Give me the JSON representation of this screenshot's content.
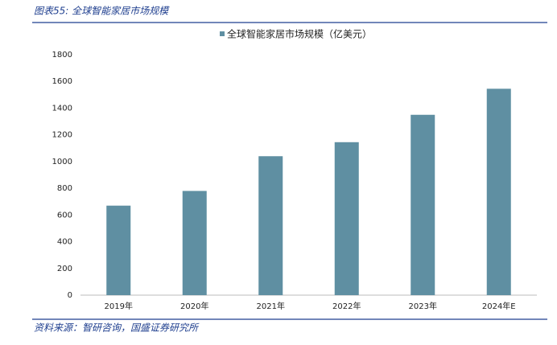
{
  "chart_data": {
    "type": "bar",
    "title": "图表55:  全球智能家居市场规模",
    "source": "资料来源：智研咨询，国盛证券研究所",
    "categories": [
      "2019年",
      "2020年",
      "2021年",
      "2022年",
      "2023年",
      "2024年E"
    ],
    "series": [
      {
        "name": "全球智能家居市场规模（亿美元）",
        "color": "#5f8fa2",
        "values": [
          670,
          780,
          1040,
          1145,
          1350,
          1545
        ]
      }
    ],
    "ylim": [
      0,
      1800
    ],
    "yticks": [
      0,
      200,
      400,
      600,
      800,
      1000,
      1200,
      1400,
      1600,
      1800
    ],
    "legend": "top"
  }
}
